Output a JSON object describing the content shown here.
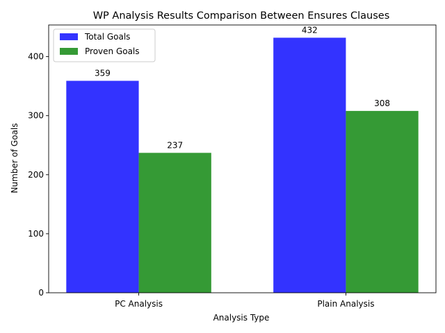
{
  "chart_data": {
    "type": "bar",
    "title": "WP Analysis Results Comparison Between Ensures Clauses",
    "xlabel": "Analysis Type",
    "ylabel": "Number of Goals",
    "categories": [
      "PC Analysis",
      "Plain Analysis"
    ],
    "series": [
      {
        "name": "Total Goals",
        "values": [
          359,
          432
        ],
        "color": "#3333ff"
      },
      {
        "name": "Proven Goals",
        "values": [
          237,
          308
        ],
        "color": "#359a35"
      }
    ],
    "ylim": [
      0,
      453.6
    ],
    "yticks": [
      0,
      100,
      200,
      300,
      400
    ],
    "legend": "top-left",
    "grid": false,
    "data_labels": true
  }
}
